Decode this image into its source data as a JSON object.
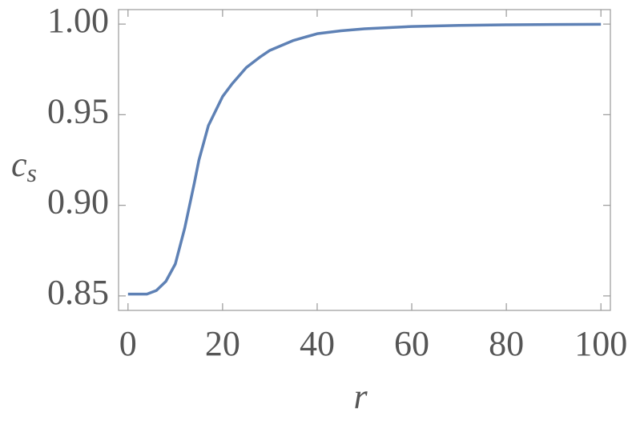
{
  "chart_data": {
    "type": "line",
    "xlabel": "r",
    "ylabel": {
      "main": "c",
      "sub": "s"
    },
    "x": [
      0,
      2,
      4,
      6,
      8,
      10,
      12,
      14,
      15,
      17,
      20,
      22,
      25,
      28,
      30,
      35,
      40,
      45,
      50,
      60,
      70,
      80,
      90,
      100
    ],
    "series": [
      {
        "name": "c_s",
        "color": "#5e81b5",
        "values": [
          0.851,
          0.851,
          0.851,
          0.853,
          0.858,
          0.8676,
          0.8875,
          0.912,
          0.925,
          0.944,
          0.96,
          0.967,
          0.976,
          0.982,
          0.9855,
          0.991,
          0.9947,
          0.9963,
          0.9974,
          0.9987,
          0.9993,
          0.9996,
          0.9998,
          0.9999
        ]
      }
    ],
    "xlim": [
      -2,
      102
    ],
    "ylim": [
      0.842,
      1.008
    ],
    "xticks": [
      0,
      20,
      40,
      60,
      80,
      100
    ],
    "yticks": [
      {
        "value": 1,
        "label": "1.00"
      },
      0.95,
      {
        "value": 0.9,
        "label": "0.90"
      },
      0.85
    ],
    "grid": false
  }
}
